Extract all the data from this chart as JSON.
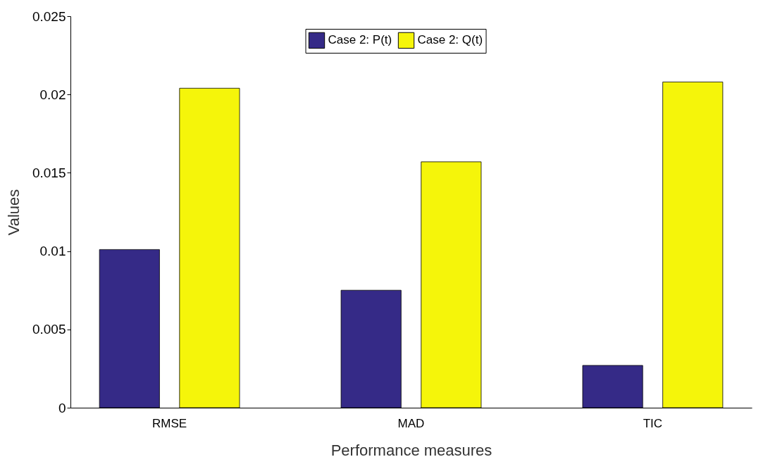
{
  "chart_data": {
    "type": "bar",
    "xlabel": "Performance measures",
    "ylabel": "Values",
    "categories": [
      "RMSE",
      "MAD",
      "TIC"
    ],
    "series": [
      {
        "name": "Case 2: P(t)",
        "color": "#352a87",
        "values": [
          0.0101,
          0.0075,
          0.0027
        ]
      },
      {
        "name": "Case 2: Q(t)",
        "color": "#f5f50a",
        "values": [
          0.0204,
          0.0157,
          0.0208
        ]
      }
    ],
    "ylim": [
      0,
      0.025
    ],
    "yticks": [
      0,
      0.005,
      0.01,
      0.015,
      0.02,
      0.025
    ],
    "grid": false,
    "legend": "top"
  }
}
